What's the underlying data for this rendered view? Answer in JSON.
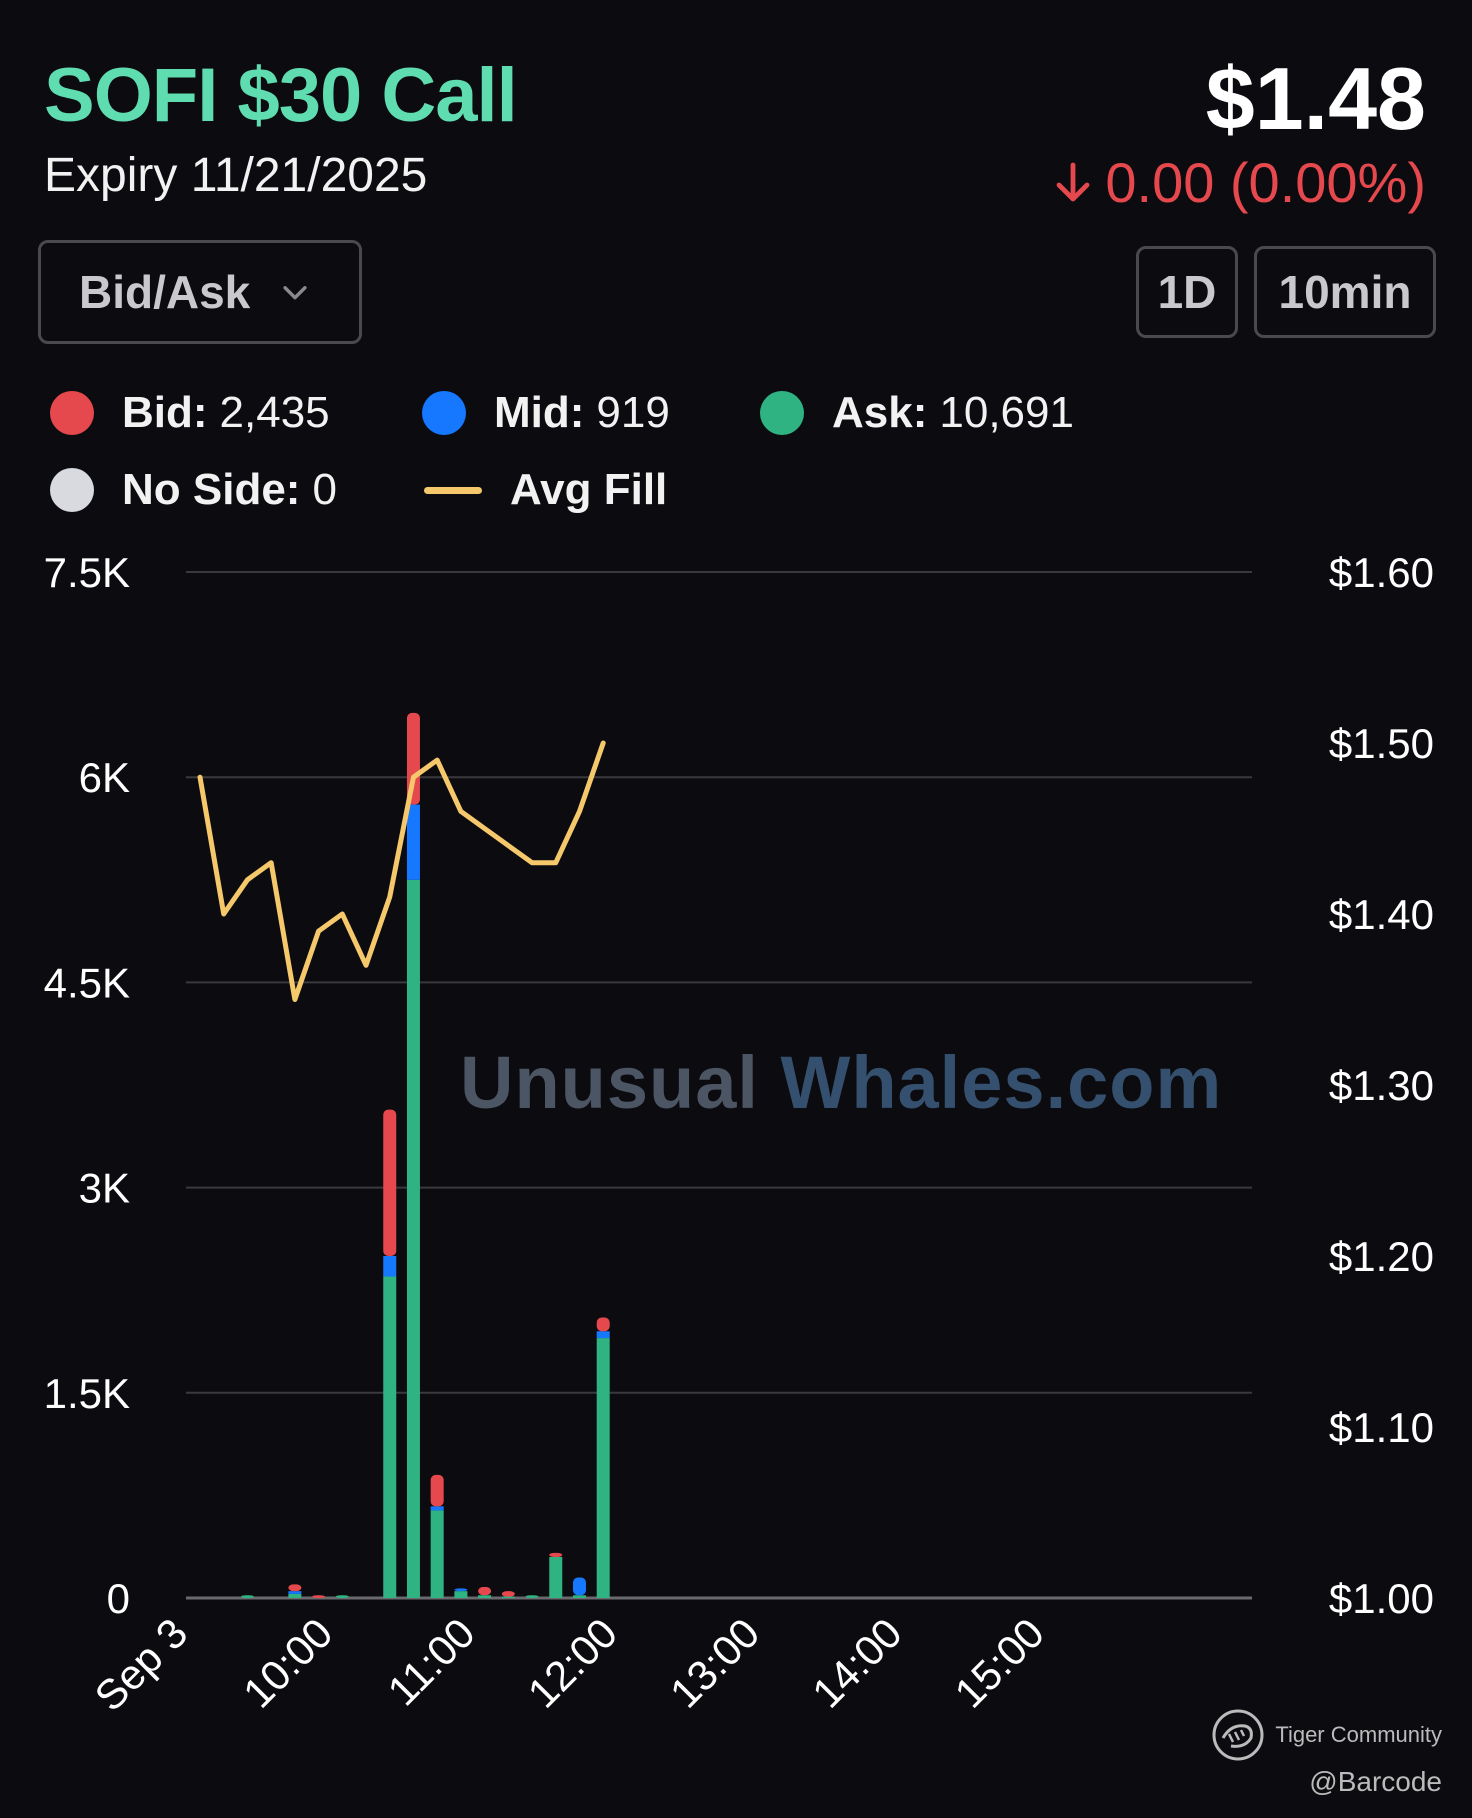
{
  "header": {
    "title": "SOFI $30 Call",
    "expiry": "Expiry 11/21/2025",
    "price": "$1.48",
    "change": "0.00 (0.00%)"
  },
  "controls": {
    "dropdown_label": "Bid/Ask",
    "period_label": "1D",
    "interval_label": "10min"
  },
  "legend": {
    "bid_label": "Bid:",
    "bid_value": "2,435",
    "mid_label": "Mid:",
    "mid_value": "919",
    "ask_label": "Ask:",
    "ask_value": "10,691",
    "noside_label": "No Side:",
    "noside_value": "0",
    "avgfill_label": "Avg Fill"
  },
  "watermark": {
    "part1": "Unusual",
    "part2": "Whales",
    "part3": ".com"
  },
  "footer": {
    "brand": "Tiger Community",
    "handle": "@Barcode"
  },
  "colors": {
    "bid": "#e5484d",
    "mid": "#1677ff",
    "ask": "#30b383",
    "noside": "#d8dadf",
    "avg_fill": "#f5c86b",
    "grid": "#3a3a3e"
  },
  "chart_data": {
    "type": "bar",
    "title": "SOFI $30 Call",
    "x_tick_labels": [
      "Sep 3",
      "10:00",
      "11:00",
      "12:00",
      "13:00",
      "14:00",
      "15:00"
    ],
    "y_left_tick_labels": [
      "0",
      "1.5K",
      "3K",
      "4.5K",
      "6K",
      "7.5K"
    ],
    "y_left_ticks": [
      0,
      1500,
      3000,
      4500,
      6000,
      7500
    ],
    "y_left_range": [
      0,
      7500
    ],
    "y_right_tick_labels": [
      "$1.00",
      "$1.10",
      "$1.20",
      "$1.30",
      "$1.40",
      "$1.50",
      "$1.60"
    ],
    "y_right_ticks": [
      1.0,
      1.1,
      1.2,
      1.3,
      1.4,
      1.5,
      1.6
    ],
    "y_right_range": [
      1.0,
      1.6
    ],
    "x_time_range": [
      "09:30",
      "16:00"
    ],
    "bars": {
      "times": [
        "09:30",
        "09:40",
        "09:50",
        "10:00",
        "10:10",
        "10:20",
        "10:30",
        "10:40",
        "10:50",
        "11:00",
        "11:10",
        "11:20",
        "11:30",
        "11:40",
        "11:50",
        "12:00",
        "12:10",
        "12:20"
      ],
      "series": [
        {
          "name": "Ask",
          "values": [
            0,
            0,
            20,
            0,
            30,
            0,
            20,
            0,
            2350,
            5250,
            640,
            50,
            20,
            10,
            20,
            300,
            20,
            1900
          ]
        },
        {
          "name": "Mid",
          "values": [
            0,
            0,
            0,
            0,
            20,
            0,
            0,
            0,
            150,
            550,
            30,
            20,
            0,
            0,
            0,
            0,
            130,
            50
          ]
        },
        {
          "name": "Bid",
          "values": [
            0,
            0,
            0,
            0,
            50,
            20,
            0,
            0,
            1070,
            670,
            230,
            0,
            60,
            40,
            0,
            30,
            0,
            100
          ]
        }
      ]
    },
    "avg_fill": {
      "name": "Avg Fill",
      "times": [
        "09:30",
        "09:40",
        "09:50",
        "10:00",
        "10:10",
        "10:20",
        "10:30",
        "10:40",
        "10:50",
        "11:00",
        "11:10",
        "11:20",
        "11:30",
        "11:40",
        "11:50",
        "12:00",
        "12:10",
        "12:20"
      ],
      "values": [
        1.48,
        1.4,
        1.42,
        1.43,
        1.35,
        1.39,
        1.4,
        1.37,
        1.41,
        1.48,
        1.49,
        1.46,
        1.45,
        1.44,
        1.43,
        1.43,
        1.46,
        1.5
      ]
    },
    "grid": true,
    "legend_position": "top"
  }
}
